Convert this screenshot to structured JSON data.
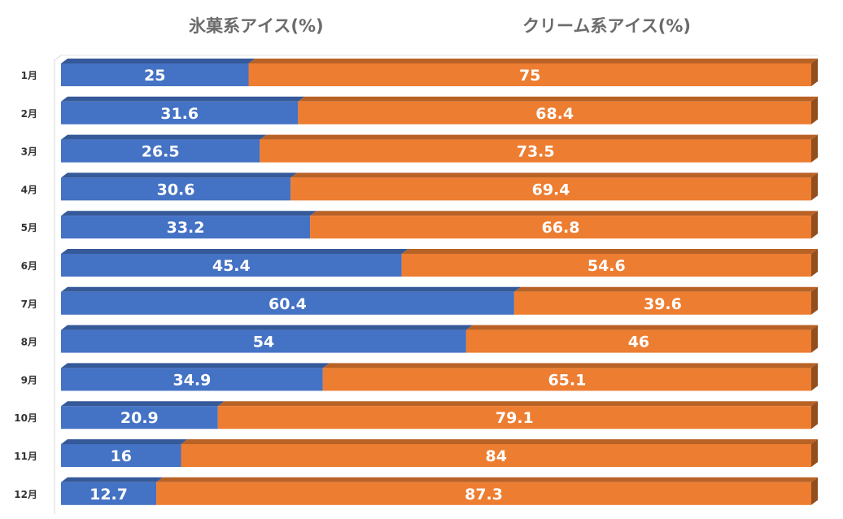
{
  "chart_data": {
    "type": "bar",
    "orientation": "horizontal",
    "stacked": "100%",
    "categories": [
      "1月",
      "2月",
      "3月",
      "4月",
      "5月",
      "6月",
      "7月",
      "8月",
      "9月",
      "10月",
      "11月",
      "12月"
    ],
    "series": [
      {
        "name": "氷菓系アイス(%)",
        "color": "#4472c4",
        "values": [
          25,
          31.6,
          26.5,
          30.6,
          33.2,
          45.4,
          60.4,
          54,
          34.9,
          20.9,
          16,
          12.7
        ]
      },
      {
        "name": "クリーム系アイス(%)",
        "color": "#ed7d31",
        "values": [
          75,
          68.4,
          73.5,
          69.4,
          66.8,
          54.6,
          39.6,
          46,
          65.1,
          79.1,
          84,
          87.3
        ]
      }
    ],
    "xlim": [
      0,
      100
    ],
    "data_labels": true,
    "legend": "top"
  }
}
